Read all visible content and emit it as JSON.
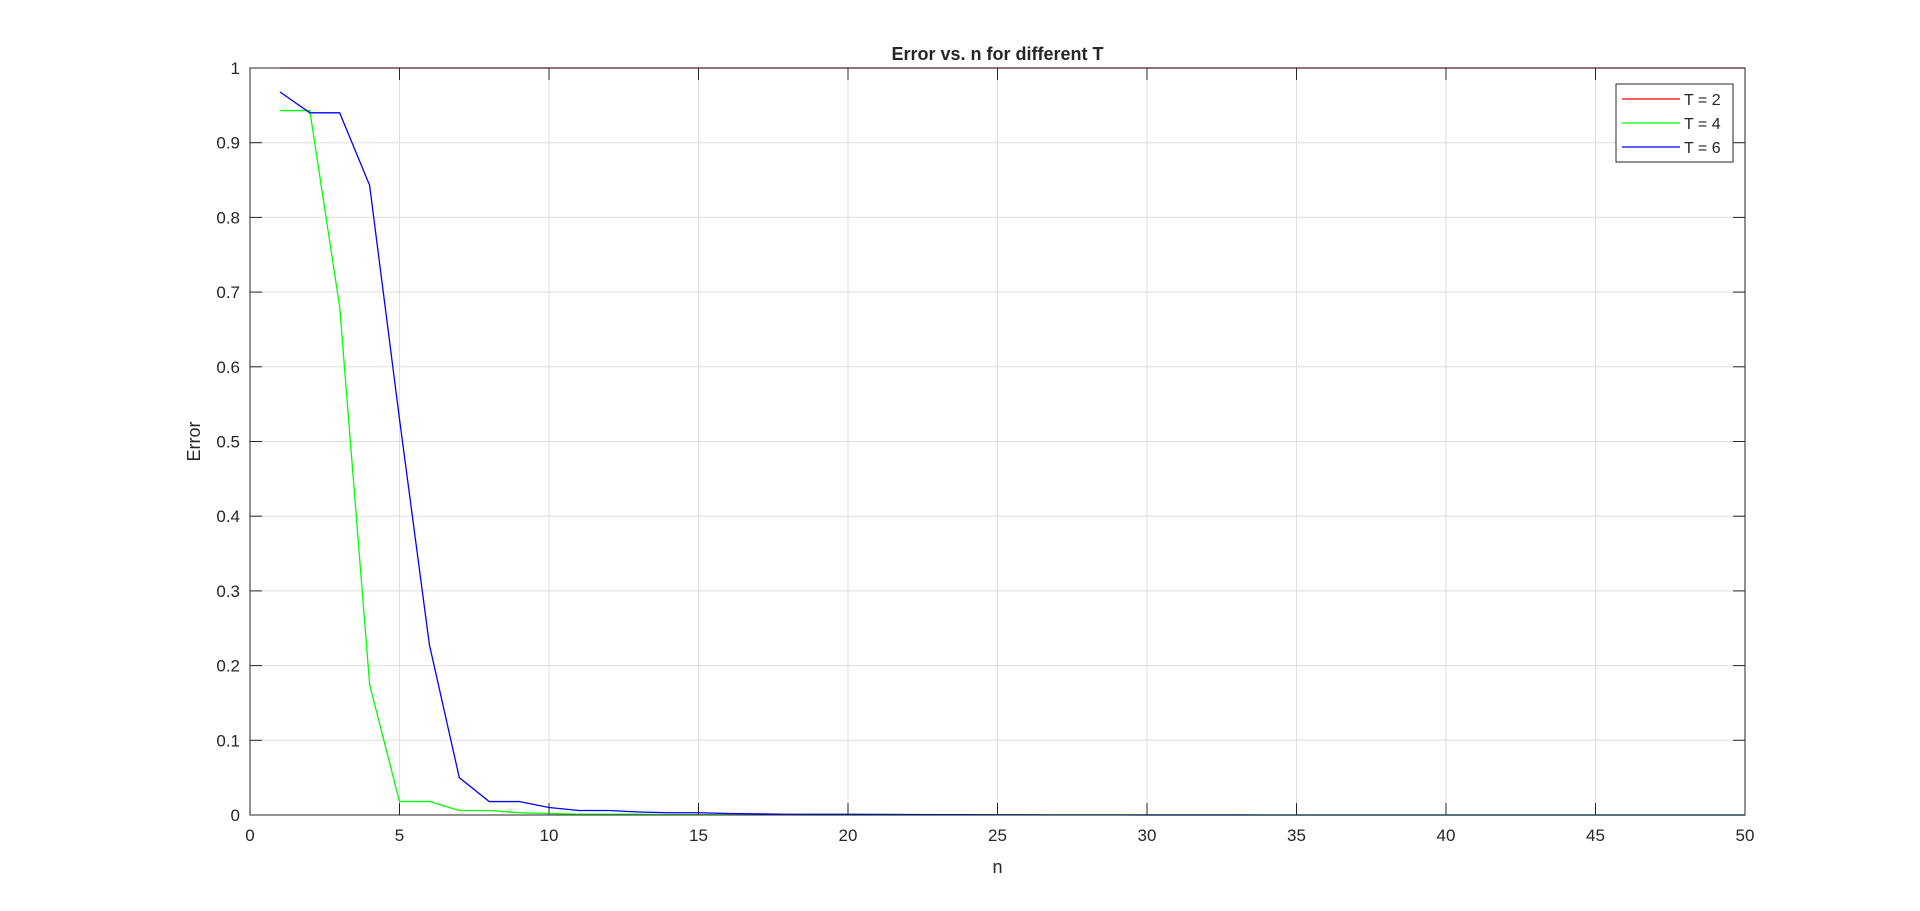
{
  "chart_data": {
    "type": "line",
    "title": "Error vs. n for different T",
    "xlabel": "n",
    "ylabel": "Error",
    "xlim": [
      0,
      50
    ],
    "ylim": [
      0,
      1
    ],
    "xticks": [
      0,
      5,
      10,
      15,
      20,
      25,
      30,
      35,
      40,
      45,
      50
    ],
    "yticks": [
      0,
      0.1,
      0.2,
      0.3,
      0.4,
      0.5,
      0.6,
      0.7,
      0.8,
      0.9,
      1
    ],
    "grid": true,
    "legend_position": "top-right",
    "x": [
      1,
      2,
      3,
      4,
      5,
      6,
      7,
      8,
      9,
      10,
      11,
      12,
      13,
      14,
      15,
      16,
      17,
      18,
      19,
      20,
      21,
      22,
      23,
      24,
      25,
      26,
      27,
      28,
      29,
      30,
      31,
      32,
      33,
      34,
      35,
      36,
      37,
      38,
      39,
      40,
      41,
      42,
      43,
      44,
      45,
      46,
      47,
      48,
      49,
      50
    ],
    "series": [
      {
        "name": "T = 2",
        "color": "#ff0000",
        "values": [
          1,
          1,
          1,
          1,
          1,
          1,
          1,
          1,
          1,
          1,
          1,
          1,
          1,
          1,
          1,
          1,
          1,
          1,
          1,
          1,
          1,
          1,
          1,
          1,
          1,
          1,
          1,
          1,
          1,
          1,
          1,
          1,
          1,
          1,
          1,
          1,
          1,
          1,
          1,
          1,
          1,
          1,
          1,
          1,
          1,
          1,
          1,
          1,
          1,
          1
        ]
      },
      {
        "name": "T = 4",
        "color": "#00ff00",
        "values": [
          0.943,
          0.943,
          0.68,
          0.175,
          0.018,
          0.018,
          0.006,
          0.006,
          0.003,
          0.002,
          0.001,
          0.001,
          0.001,
          0.0005,
          0.0005,
          0.0003,
          0.0002,
          0.0002,
          0.0001,
          0.0001,
          0,
          0,
          0,
          0,
          0,
          0,
          0,
          0,
          0,
          0,
          0,
          0,
          0,
          0,
          0,
          0,
          0,
          0,
          0,
          0,
          0,
          0,
          0,
          0,
          0,
          0,
          0,
          0,
          0,
          0
        ]
      },
      {
        "name": "T = 6",
        "color": "#0000ff",
        "values": [
          0.968,
          0.94,
          0.94,
          0.843,
          0.53,
          0.228,
          0.05,
          0.018,
          0.018,
          0.01,
          0.006,
          0.006,
          0.004,
          0.003,
          0.003,
          0.002,
          0.0015,
          0.001,
          0.001,
          0.001,
          0.0008,
          0.0006,
          0.0005,
          0.0004,
          0.0003,
          0.0003,
          0.0002,
          0.0002,
          0.0002,
          0.0001,
          0.0001,
          0.0001,
          0.0001,
          0,
          0,
          0,
          0,
          0,
          0,
          0,
          0,
          0,
          0,
          0,
          0,
          0,
          0,
          0,
          0,
          0
        ]
      }
    ]
  }
}
